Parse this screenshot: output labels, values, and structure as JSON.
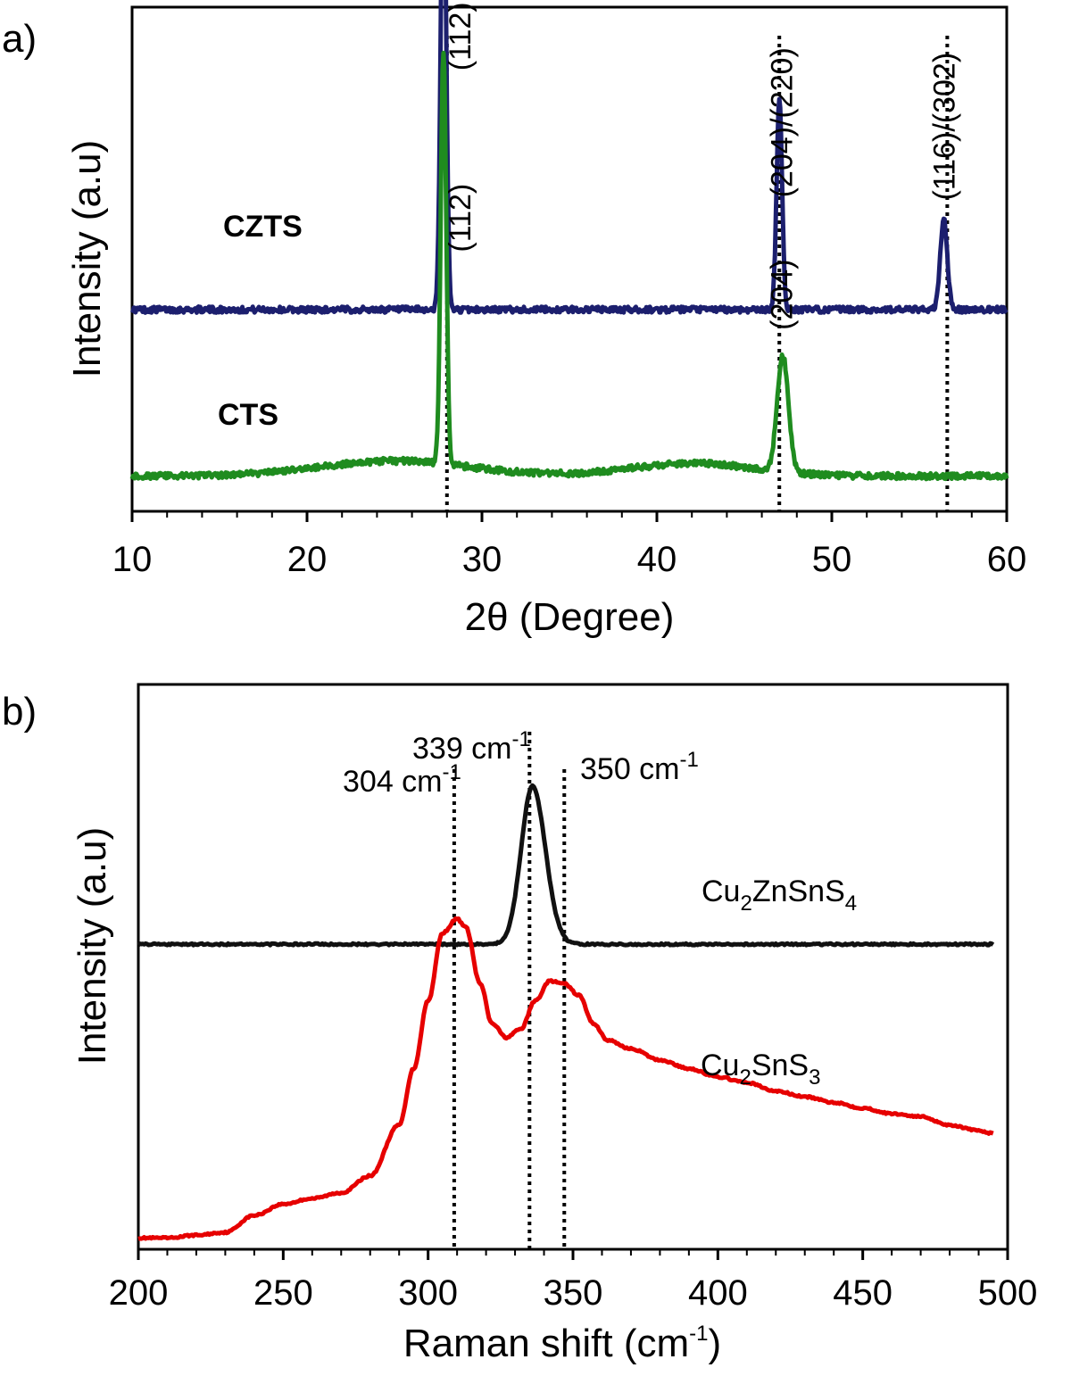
{
  "chart_data": [
    {
      "panel_label": "a)",
      "type": "line",
      "xlabel": "2θ (Degree)",
      "ylabel": "Intensity (a.u)",
      "xlim": [
        10,
        60
      ],
      "xticks": [
        "10",
        "20",
        "30",
        "40",
        "50",
        "60"
      ],
      "y_ticks_labeled": false,
      "grid": false,
      "series": [
        {
          "name": "CZTS",
          "color": "#1c1f6e",
          "baseline": 0.4,
          "label_weight": "bold",
          "peaks": [
            {
              "x": 27.8,
              "height": 0.93,
              "width": 0.22
            },
            {
              "x": 47.0,
              "height": 0.42,
              "width": 0.22
            },
            {
              "x": 56.4,
              "height": 0.18,
              "width": 0.28
            }
          ],
          "noise": 0.012
        },
        {
          "name": "CTS",
          "color": "#1f8c1f",
          "baseline": 0.07,
          "label_weight": "bold",
          "peaks": [
            {
              "x": 27.8,
              "height": 0.82,
              "width": 0.22
            },
            {
              "x": 47.2,
              "height": 0.23,
              "width": 0.45
            }
          ],
          "broad": [
            {
              "x": 25.0,
              "height": 0.03,
              "width": 6
            },
            {
              "x": 42.0,
              "height": 0.025,
              "width": 5
            }
          ],
          "noise": 0.012
        }
      ],
      "reference_lines": [
        28.0,
        47.0,
        56.6
      ],
      "annotations": [
        {
          "text": "(112)",
          "x": 28.1,
          "y": 1.01,
          "rotate": -90
        },
        {
          "text": "(204)/(220)",
          "x": 46.5,
          "y": 0.92,
          "rotate": -90
        },
        {
          "text": "(116)/(302)",
          "x": 55.8,
          "y": 0.91,
          "rotate": -90
        },
        {
          "text": "(112)",
          "x": 28.1,
          "y": 0.65,
          "rotate": -90
        },
        {
          "text": "(204)",
          "x": 46.5,
          "y": 0.5,
          "rotate": -90
        }
      ]
    },
    {
      "panel_label": "b)",
      "type": "line",
      "xlabel": "Raman shift (cm",
      "xlabel_sup": "-1",
      "xlabel_end": ")",
      "ylabel": "Intensity (a.u)",
      "xlim": [
        200,
        500
      ],
      "xticks": [
        "200",
        "250",
        "300",
        "350",
        "400",
        "450",
        "500"
      ],
      "y_ticks_labeled": false,
      "grid": false,
      "series": [
        {
          "name_parts": [
            [
              "Cu",
              "n"
            ],
            [
              "2",
              "sub"
            ],
            [
              "ZnSnS",
              "n"
            ],
            [
              "4",
              "sub"
            ]
          ],
          "color": "#111111",
          "baseline": 0.54,
          "peaks": [
            {
              "x": 336,
              "height": 0.28,
              "width": 5.5
            }
          ],
          "noise": 0.003
        },
        {
          "name_parts": [
            [
              "Cu",
              "n"
            ],
            [
              "2",
              "sub"
            ],
            [
              "SnS",
              "n"
            ],
            [
              "3",
              "sub"
            ]
          ],
          "color": "#e60000",
          "shape": "raman_cts",
          "points": [
            [
              200,
              0.02
            ],
            [
              210,
              0.02
            ],
            [
              220,
              0.025
            ],
            [
              230,
              0.03
            ],
            [
              240,
              0.06
            ],
            [
              250,
              0.08
            ],
            [
              260,
              0.09
            ],
            [
              270,
              0.1
            ],
            [
              280,
              0.13
            ],
            [
              290,
              0.22
            ],
            [
              295,
              0.32
            ],
            [
              300,
              0.44
            ],
            [
              305,
              0.56
            ],
            [
              310,
              0.585
            ],
            [
              313,
              0.57
            ],
            [
              318,
              0.47
            ],
            [
              322,
              0.4
            ],
            [
              327,
              0.375
            ],
            [
              332,
              0.39
            ],
            [
              337,
              0.44
            ],
            [
              342,
              0.475
            ],
            [
              347,
              0.47
            ],
            [
              352,
              0.45
            ],
            [
              357,
              0.4
            ],
            [
              362,
              0.37
            ],
            [
              370,
              0.355
            ],
            [
              380,
              0.335
            ],
            [
              390,
              0.32
            ],
            [
              400,
              0.305
            ],
            [
              410,
              0.295
            ],
            [
              420,
              0.28
            ],
            [
              430,
              0.27
            ],
            [
              440,
              0.26
            ],
            [
              450,
              0.25
            ],
            [
              460,
              0.24
            ],
            [
              470,
              0.235
            ],
            [
              480,
              0.22
            ],
            [
              490,
              0.21
            ],
            [
              495,
              0.205
            ]
          ],
          "noise": 0.003
        }
      ],
      "reference_lines": [
        309,
        335,
        347
      ],
      "annotations_sup": [
        {
          "text": "339 cm",
          "sup": "-1"
        },
        {
          "text": "304 cm",
          "sup": "-1"
        },
        {
          "text": "350 cm",
          "sup": "-1"
        }
      ]
    }
  ]
}
